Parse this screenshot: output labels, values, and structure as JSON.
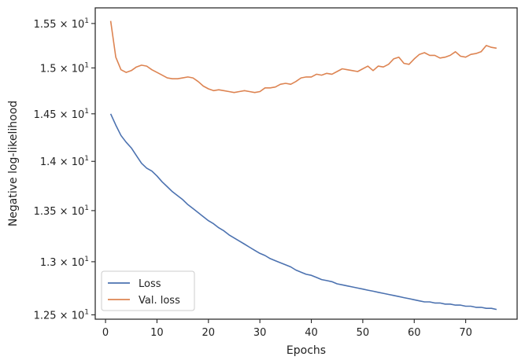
{
  "chart_data": {
    "type": "line",
    "title": "",
    "xlabel": "Epochs",
    "ylabel": "Negative log-likelihood",
    "xlim": [
      -2,
      80
    ],
    "ylim": [
      12.46,
      15.68
    ],
    "yscale": "log",
    "grid": false,
    "legend_position": "lower-left",
    "x_ticks": [
      {
        "value": 0,
        "label": "0"
      },
      {
        "value": 10,
        "label": "10"
      },
      {
        "value": 20,
        "label": "20"
      },
      {
        "value": 30,
        "label": "30"
      },
      {
        "value": 40,
        "label": "40"
      },
      {
        "value": 50,
        "label": "50"
      },
      {
        "value": 60,
        "label": "60"
      },
      {
        "value": 70,
        "label": "70"
      }
    ],
    "y_ticks": [
      {
        "value": 12.5,
        "mantissa": "1.25",
        "exponent": "1"
      },
      {
        "value": 13.0,
        "mantissa": "1.3",
        "exponent": "1"
      },
      {
        "value": 13.5,
        "mantissa": "1.35",
        "exponent": "1"
      },
      {
        "value": 14.0,
        "mantissa": "1.4",
        "exponent": "1"
      },
      {
        "value": 14.5,
        "mantissa": "1.45",
        "exponent": "1"
      },
      {
        "value": 15.0,
        "mantissa": "1.5",
        "exponent": "1"
      },
      {
        "value": 15.5,
        "mantissa": "1.55",
        "exponent": "1"
      }
    ],
    "series": [
      {
        "name": "Loss",
        "color": "#4c72b0",
        "x": [
          1,
          2,
          3,
          4,
          5,
          6,
          7,
          8,
          9,
          10,
          11,
          12,
          13,
          14,
          15,
          16,
          17,
          18,
          19,
          20,
          21,
          22,
          23,
          24,
          25,
          26,
          27,
          28,
          29,
          30,
          31,
          32,
          33,
          34,
          35,
          36,
          37,
          38,
          39,
          40,
          41,
          42,
          43,
          44,
          45,
          46,
          47,
          48,
          49,
          50,
          51,
          52,
          53,
          54,
          55,
          56,
          57,
          58,
          59,
          60,
          61,
          62,
          63,
          64,
          65,
          66,
          67,
          68,
          69,
          70,
          71,
          72,
          73,
          74,
          75,
          76
        ],
        "values": [
          14.5,
          14.38,
          14.27,
          14.2,
          14.14,
          14.06,
          13.98,
          13.93,
          13.9,
          13.85,
          13.79,
          13.74,
          13.69,
          13.65,
          13.61,
          13.56,
          13.52,
          13.48,
          13.44,
          13.4,
          13.37,
          13.33,
          13.3,
          13.26,
          13.23,
          13.2,
          13.17,
          13.14,
          13.11,
          13.08,
          13.06,
          13.03,
          13.01,
          12.99,
          12.97,
          12.95,
          12.92,
          12.9,
          12.88,
          12.87,
          12.85,
          12.83,
          12.82,
          12.81,
          12.79,
          12.78,
          12.77,
          12.76,
          12.75,
          12.74,
          12.73,
          12.72,
          12.71,
          12.7,
          12.69,
          12.68,
          12.67,
          12.66,
          12.65,
          12.64,
          12.63,
          12.62,
          12.62,
          12.61,
          12.61,
          12.6,
          12.6,
          12.59,
          12.59,
          12.58,
          12.58,
          12.57,
          12.57,
          12.56,
          12.56,
          12.55
        ]
      },
      {
        "name": "Val. loss",
        "color": "#dd8452",
        "x": [
          1,
          2,
          3,
          4,
          5,
          6,
          7,
          8,
          9,
          10,
          11,
          12,
          13,
          14,
          15,
          16,
          17,
          18,
          19,
          20,
          21,
          22,
          23,
          24,
          25,
          26,
          27,
          28,
          29,
          30,
          31,
          32,
          33,
          34,
          35,
          36,
          37,
          38,
          39,
          40,
          41,
          42,
          43,
          44,
          45,
          46,
          47,
          48,
          49,
          50,
          51,
          52,
          53,
          54,
          55,
          56,
          57,
          58,
          59,
          60,
          61,
          62,
          63,
          64,
          65,
          66,
          67,
          68,
          69,
          70,
          71,
          72,
          73,
          74,
          75,
          76
        ],
        "values": [
          15.53,
          15.12,
          14.98,
          14.95,
          14.97,
          15.01,
          15.03,
          15.02,
          14.98,
          14.95,
          14.92,
          14.89,
          14.88,
          14.88,
          14.89,
          14.9,
          14.89,
          14.85,
          14.8,
          14.77,
          14.75,
          14.76,
          14.75,
          14.74,
          14.73,
          14.74,
          14.75,
          14.74,
          14.73,
          14.74,
          14.78,
          14.78,
          14.79,
          14.82,
          14.83,
          14.82,
          14.85,
          14.89,
          14.9,
          14.9,
          14.93,
          14.92,
          14.94,
          14.93,
          14.96,
          14.99,
          14.98,
          14.97,
          14.96,
          14.99,
          15.02,
          14.97,
          15.02,
          15.01,
          15.04,
          15.1,
          15.12,
          15.05,
          15.04,
          15.1,
          15.15,
          15.17,
          15.14,
          15.14,
          15.11,
          15.12,
          15.14,
          15.18,
          15.13,
          15.12,
          15.15,
          15.16,
          15.18,
          15.25,
          15.23,
          15.22
        ]
      }
    ]
  }
}
